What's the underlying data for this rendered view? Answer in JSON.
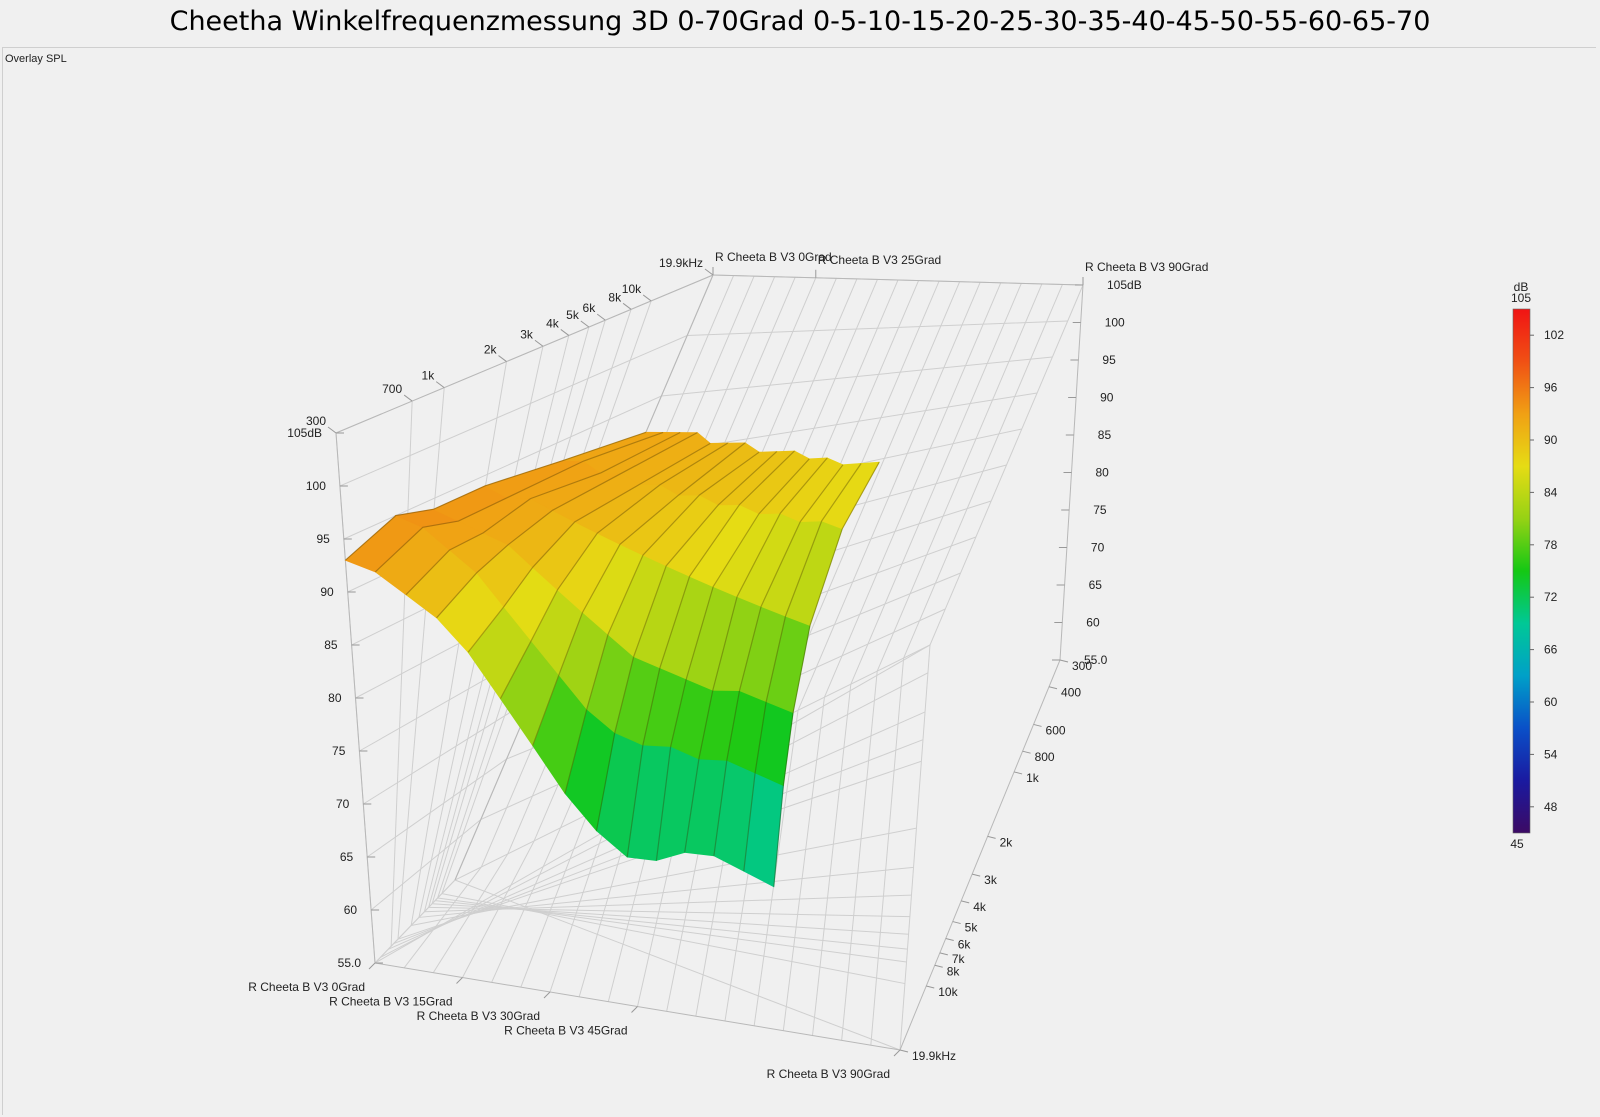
{
  "chart_data": {
    "type": "surface3d",
    "title": "Cheetha Winkelfrequenzmessung 3D 0-70Grad 0-5-10-15-20-25-30-35-40-45-50-55-60-65-70",
    "panel_label": "Overlay SPL",
    "z_axis": {
      "range": [
        55,
        105
      ],
      "ticks": [
        "55.0",
        "60",
        "65",
        "70",
        "75",
        "80",
        "85",
        "90",
        "95",
        "100",
        "105dB"
      ]
    },
    "frequency_axis_front_right": {
      "scale": "log",
      "range": [
        300,
        19900
      ],
      "ticks": [
        {
          "f": 300,
          "label": "300"
        },
        {
          "f": 400,
          "label": "400"
        },
        {
          "f": 600,
          "label": "600"
        },
        {
          "f": 800,
          "label": "800"
        },
        {
          "f": 1000,
          "label": "1k"
        },
        {
          "f": 2000,
          "label": "2k"
        },
        {
          "f": 3000,
          "label": "3k"
        },
        {
          "f": 4000,
          "label": "4k"
        },
        {
          "f": 5000,
          "label": "5k"
        },
        {
          "f": 6000,
          "label": "6k"
        },
        {
          "f": 7000,
          "label": "7k"
        },
        {
          "f": 8000,
          "label": "8k"
        },
        {
          "f": 10000,
          "label": "10k"
        },
        {
          "f": 19900,
          "label": "19.9kHz"
        }
      ]
    },
    "frequency_axis_top_left": {
      "scale": "log",
      "range": [
        300,
        19900
      ],
      "ticks": [
        {
          "f": 300,
          "label": "300"
        },
        {
          "f": 700,
          "label": "700"
        },
        {
          "f": 1000,
          "label": "1k"
        },
        {
          "f": 2000,
          "label": "2k"
        },
        {
          "f": 3000,
          "label": "3k"
        },
        {
          "f": 4000,
          "label": "4k"
        },
        {
          "f": 5000,
          "label": "5k"
        },
        {
          "f": 6000,
          "label": "6k"
        },
        {
          "f": 8000,
          "label": "8k"
        },
        {
          "f": 10000,
          "label": "10k"
        },
        {
          "f": 19900,
          "label": "19.9kHz"
        }
      ]
    },
    "angle_axis_front": {
      "range": [
        0,
        90
      ],
      "ticks": [
        {
          "deg": 0,
          "label": "R Cheeta B V3 0Grad"
        },
        {
          "deg": 15,
          "label": "R Cheeta B V3 15Grad"
        },
        {
          "deg": 30,
          "label": "R Cheeta B V3 30Grad"
        },
        {
          "deg": 45,
          "label": "R Cheeta B V3 45Grad"
        },
        {
          "deg": 90,
          "label": "R Cheeta B V3 90Grad"
        }
      ]
    },
    "angle_axis_back": {
      "ticks": [
        {
          "deg": 0,
          "label": "R Cheeta B V3 0Grad"
        },
        {
          "deg": 25,
          "label": "R Cheeta B V3 25Grad"
        },
        {
          "deg": 90,
          "label": "R Cheeta B V3 90Grad"
        }
      ]
    },
    "series": [
      {
        "angle": 0,
        "freq": [
          300,
          1000,
          3000,
          6000,
          10000,
          19900
        ],
        "spl": [
          92,
          93,
          94,
          94,
          95,
          93
        ]
      },
      {
        "angle": 5,
        "freq": [
          300,
          1000,
          3000,
          6000,
          10000,
          19900
        ],
        "spl": [
          92,
          93,
          93,
          93,
          94,
          92
        ]
      },
      {
        "angle": 10,
        "freq": [
          300,
          1000,
          3000,
          6000,
          10000,
          19900
        ],
        "spl": [
          92,
          92,
          93,
          92,
          92,
          90
        ]
      },
      {
        "angle": 15,
        "freq": [
          300,
          1000,
          3000,
          6000,
          10000,
          19900
        ],
        "spl": [
          92,
          92,
          92,
          91,
          90,
          88
        ]
      },
      {
        "angle": 20,
        "freq": [
          300,
          1000,
          3000,
          6000,
          10000,
          19900
        ],
        "spl": [
          91,
          91,
          91,
          89,
          87,
          85
        ]
      },
      {
        "angle": 25,
        "freq": [
          300,
          1000,
          3000,
          6000,
          10000,
          19900
        ],
        "spl": [
          91,
          91,
          90,
          87,
          84,
          81
        ]
      },
      {
        "angle": 30,
        "freq": [
          300,
          1000,
          3000,
          6000,
          10000,
          19900
        ],
        "spl": [
          91,
          90,
          89,
          85,
          81,
          77
        ]
      },
      {
        "angle": 35,
        "freq": [
          300,
          1000,
          3000,
          6000,
          10000,
          19900
        ],
        "spl": [
          90,
          90,
          88,
          83,
          78,
          73
        ]
      },
      {
        "angle": 40,
        "freq": [
          300,
          1000,
          3000,
          6000,
          10000,
          19900
        ],
        "spl": [
          90,
          89,
          87,
          81,
          76,
          70
        ]
      },
      {
        "angle": 45,
        "freq": [
          300,
          1000,
          3000,
          6000,
          10000,
          19900
        ],
        "spl": [
          90,
          89,
          86,
          80,
          75,
          68
        ]
      },
      {
        "angle": 50,
        "freq": [
          300,
          1000,
          3000,
          6000,
          10000,
          19900
        ],
        "spl": [
          89,
          88,
          85,
          79,
          75,
          68
        ]
      },
      {
        "angle": 55,
        "freq": [
          300,
          1000,
          3000,
          6000,
          10000,
          19900
        ],
        "spl": [
          89,
          88,
          84,
          78,
          74,
          69
        ]
      },
      {
        "angle": 60,
        "freq": [
          300,
          1000,
          3000,
          6000,
          10000,
          19900
        ],
        "spl": [
          88,
          87,
          83,
          78,
          74,
          69
        ]
      },
      {
        "angle": 65,
        "freq": [
          300,
          1000,
          3000,
          6000,
          10000,
          19900
        ],
        "spl": [
          88,
          87,
          82,
          77,
          73,
          68
        ]
      },
      {
        "angle": 70,
        "freq": [
          300,
          1000,
          3000,
          6000,
          10000,
          19900
        ],
        "spl": [
          88,
          86,
          81,
          76,
          72,
          67
        ]
      }
    ],
    "colorbar": {
      "unit": "dB",
      "min": 45,
      "max": 105,
      "ticks": [
        "48",
        "54",
        "60",
        "66",
        "72",
        "78",
        "84",
        "90",
        "96",
        "102"
      ],
      "min_label": "45",
      "max_label": "105",
      "stops": [
        "#3c0a64",
        "#1a1aa0",
        "#0a50c8",
        "#00a0c8",
        "#00c896",
        "#14c814",
        "#96d214",
        "#e6dc14",
        "#f0a014",
        "#f05014",
        "#f01414"
      ]
    },
    "grid": true,
    "legend": "colorbar-right"
  }
}
